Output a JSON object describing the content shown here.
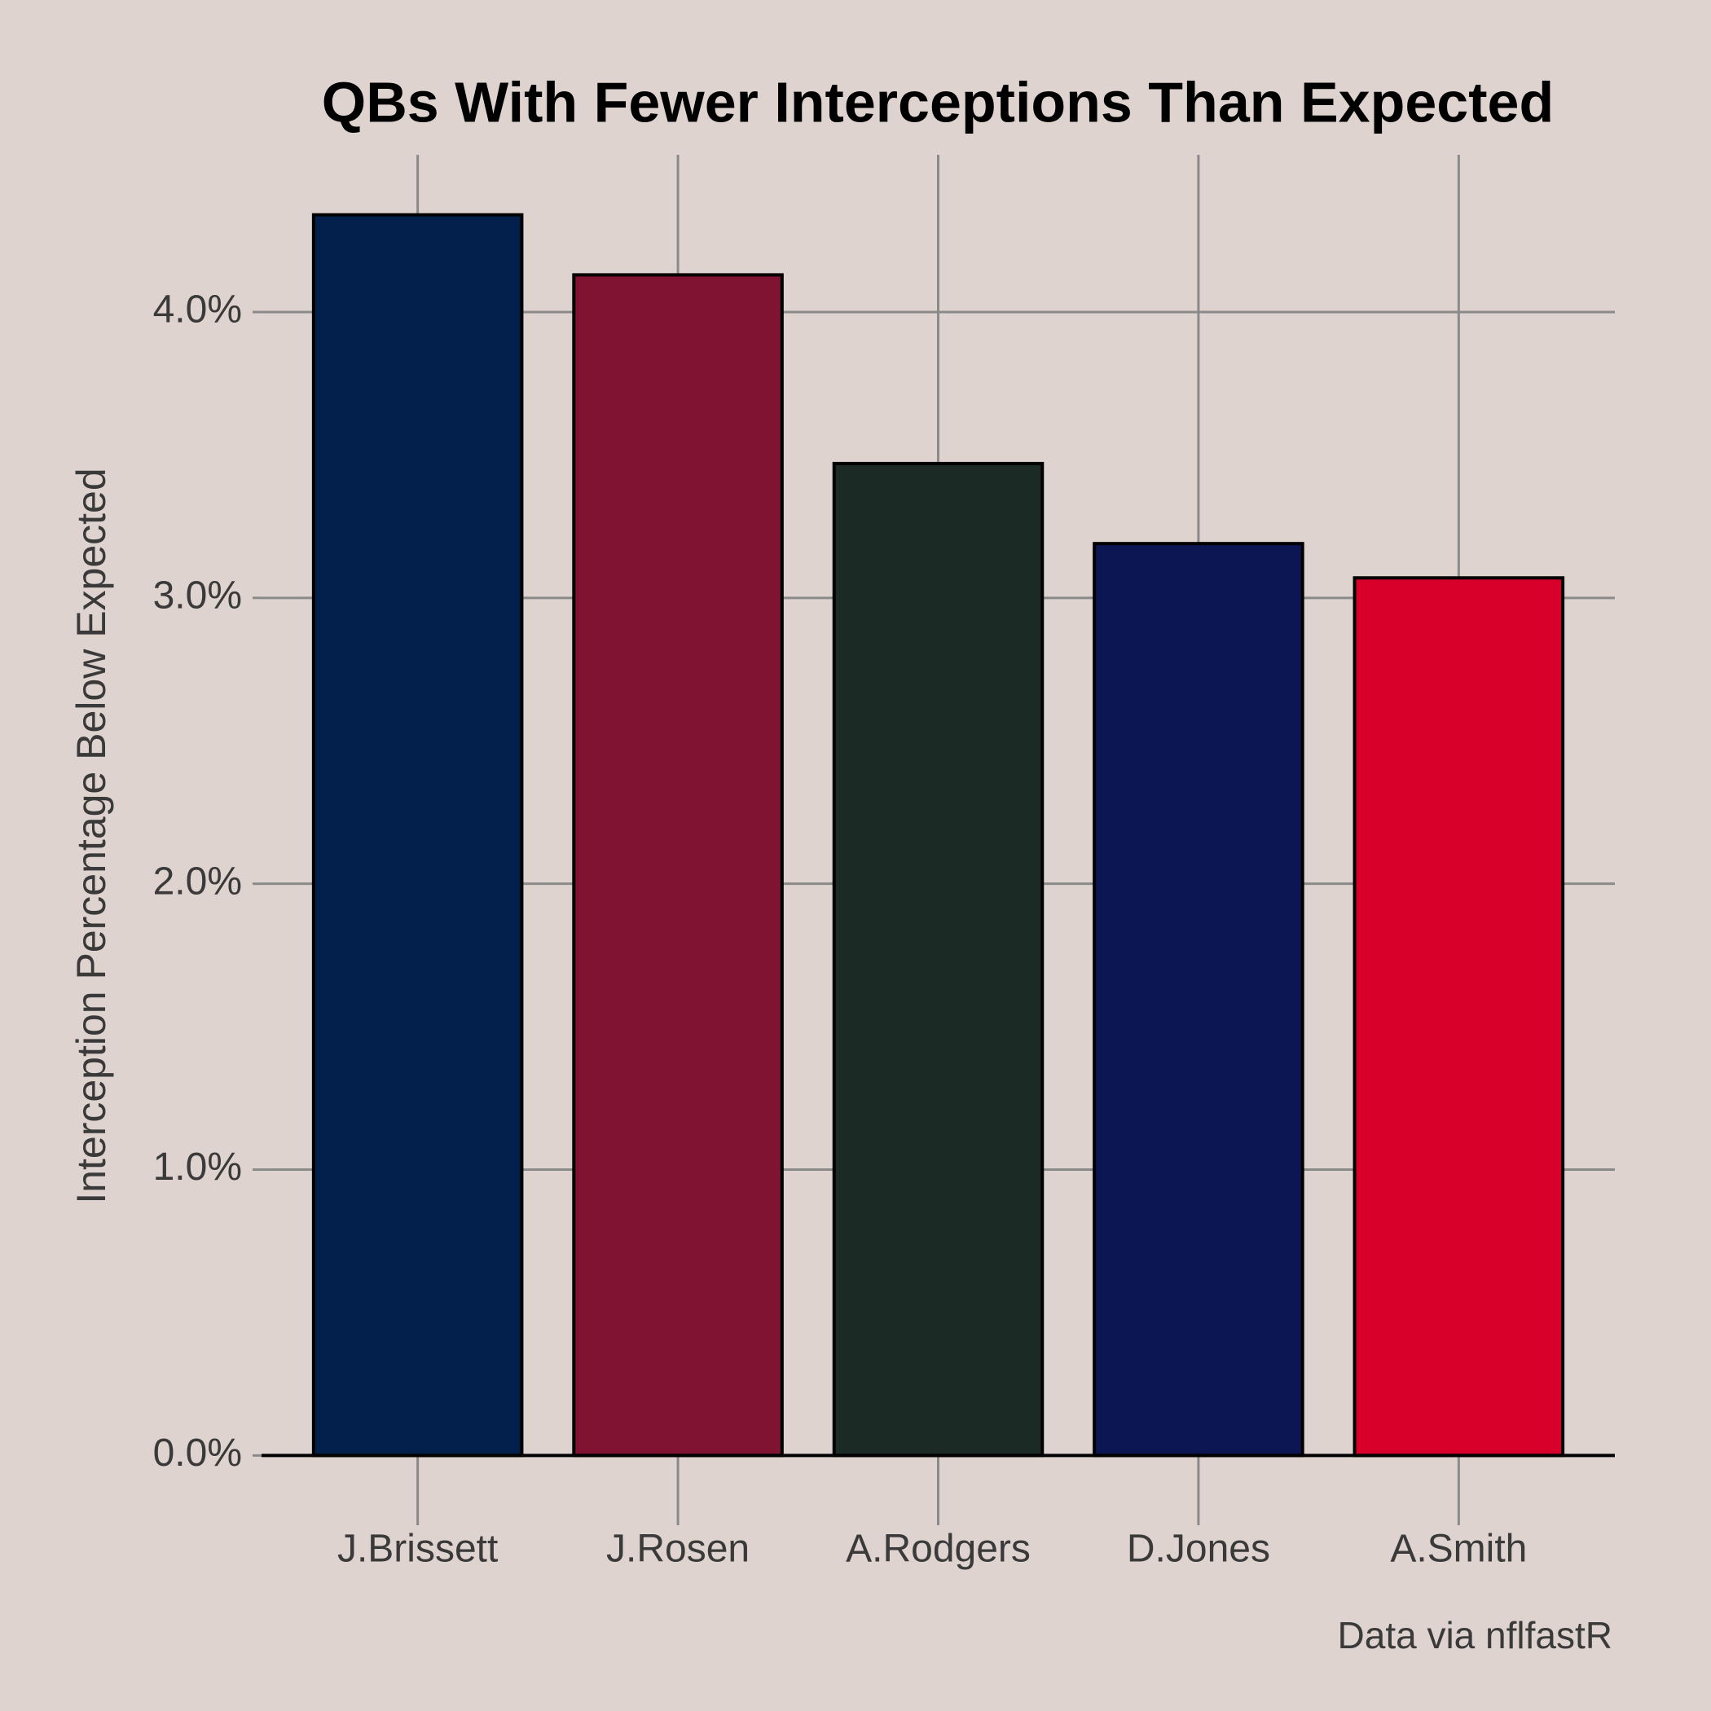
{
  "chart_data": {
    "type": "bar",
    "title": "QBs With Fewer Interceptions Than Expected",
    "ylabel": "Interception Percentage Below Expected",
    "caption": "Data via nflfastR",
    "categories": [
      "J.Brissett",
      "J.Rosen",
      "A.Rodgers",
      "D.Jones",
      "A.Smith"
    ],
    "values": [
      4.34,
      4.13,
      3.47,
      3.19,
      3.07
    ],
    "colors": [
      "#03204c",
      "#7f1331",
      "#1b2a24",
      "#0c1653",
      "#d8002a"
    ],
    "ylim": [
      -0.244,
      4.55
    ],
    "yticks": [
      {
        "value": 0,
        "label": "0.0%"
      },
      {
        "value": 1,
        "label": "1.0%"
      },
      {
        "value": 2,
        "label": "2.0%"
      },
      {
        "value": 3,
        "label": "3.0%"
      },
      {
        "value": 4,
        "label": "4.0%"
      }
    ],
    "grid": true
  }
}
